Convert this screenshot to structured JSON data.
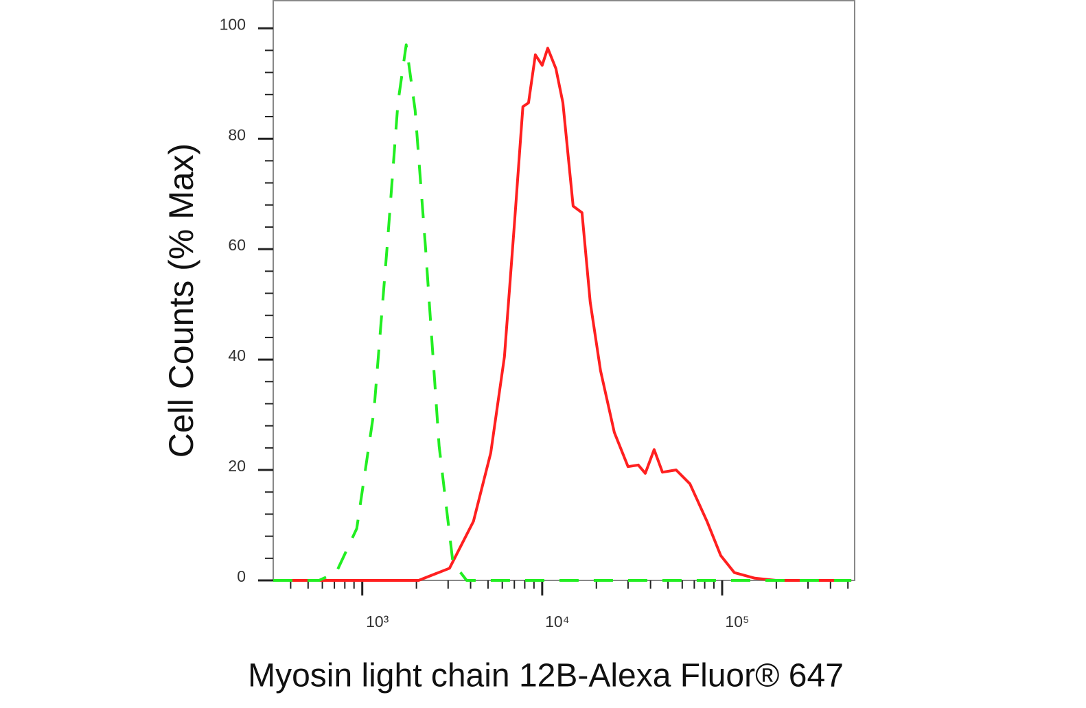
{
  "chart_data": {
    "type": "line",
    "y_label": "Cell Counts (% Max)",
    "x_label": "Myosin light chain 12B-Alexa Fluor® 647",
    "xscale": "log",
    "xlim": [
      320,
      545000
    ],
    "ylim": [
      0,
      105
    ],
    "xticks": [
      {
        "value": 1000,
        "label": "10³"
      },
      {
        "value": 10000,
        "label": "10⁴"
      },
      {
        "value": 100000,
        "label": "10⁵"
      }
    ],
    "yticks": [
      0,
      20,
      40,
      60,
      80,
      100
    ],
    "series": [
      {
        "color": "#ff2020",
        "dash": false,
        "x": [
          320,
          2056,
          3055,
          4150,
          5176,
          6166,
          7036,
          7810,
          8390,
          9160,
          10000,
          10730,
          11920,
          13030,
          14860,
          16640,
          18490,
          21090,
          25170,
          30000,
          34200,
          37400,
          41900,
          46600,
          55500,
          66200,
          82400,
          98200,
          117000,
          152000,
          199000,
          522000
        ],
        "values": [
          0,
          0,
          2.2,
          10.7,
          23.1,
          40.5,
          65.3,
          85.8,
          86.5,
          95.2,
          93.3,
          96.4,
          92.7,
          86.5,
          67.8,
          66.6,
          50.4,
          38.0,
          26.8,
          20.6,
          20.9,
          19.4,
          23.7,
          19.6,
          20.0,
          17.5,
          10.7,
          4.5,
          1.4,
          0.4,
          0,
          0
        ]
      },
      {
        "color": "#22ee22",
        "dash": true,
        "x": [
          320,
          575,
          716,
          932,
          1161,
          1384,
          1579,
          1754,
          1967,
          2245,
          2674,
          3190,
          3805,
          522000
        ],
        "values": [
          0,
          0,
          1.4,
          9.4,
          30.6,
          61.6,
          86.5,
          97.0,
          85.2,
          60.4,
          24.3,
          3.2,
          0,
          0
        ]
      }
    ]
  }
}
